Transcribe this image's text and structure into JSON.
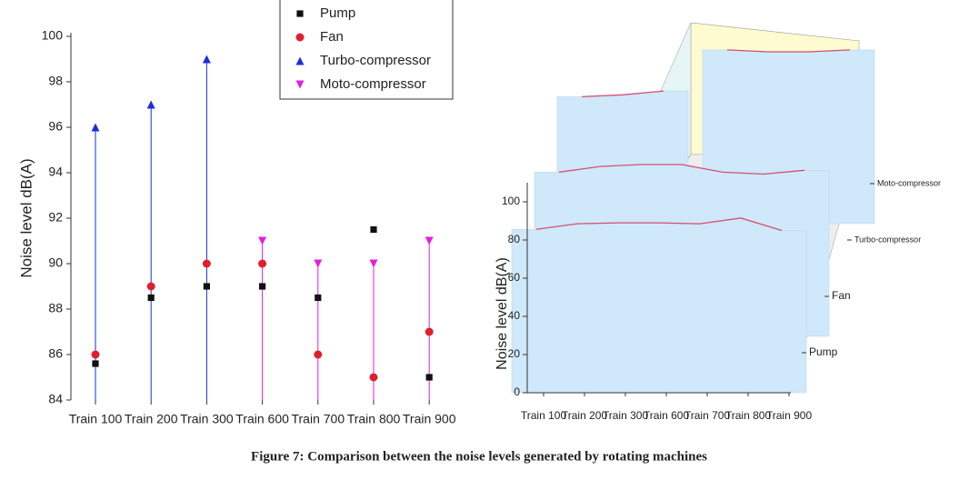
{
  "chart_data": [
    {
      "type": "scatter-drop",
      "ylabel": "Noise level dB(A)",
      "categories": [
        "Train 100",
        "Train 200",
        "Train 300",
        "Train 600",
        "Train 700",
        "Train 800",
        "Train 900"
      ],
      "series": [
        {
          "name": "Pump",
          "color": "#111111",
          "marker": "square",
          "values": [
            85.6,
            88.5,
            89,
            89,
            88.5,
            91.5,
            85
          ]
        },
        {
          "name": "Fan",
          "color": "#e0202a",
          "marker": "circle",
          "values": [
            86,
            89,
            90,
            90,
            86,
            85,
            87
          ]
        },
        {
          "name": "Turbo-compressor",
          "color": "#1a2ee0",
          "marker": "triangle-up",
          "droplines": true,
          "values": [
            96,
            97,
            99,
            null,
            null,
            null,
            null
          ]
        },
        {
          "name": "Moto-compressor",
          "color": "#e020e0",
          "marker": "triangle-down",
          "droplines": true,
          "values": [
            null,
            null,
            null,
            91,
            90,
            90,
            91
          ]
        }
      ],
      "ylim": [
        84,
        100
      ],
      "yticks": [
        84,
        86,
        88,
        90,
        92,
        94,
        96,
        98,
        100
      ]
    },
    {
      "type": "3d-wall",
      "ylabel": "Noise level dB(A)",
      "categories": [
        "Train 100",
        "Train 200",
        "Train 300",
        "Train 600",
        "Train 700",
        "Train 800",
        "Train 900"
      ],
      "series": [
        {
          "name": "Pump",
          "color": "#d4506e",
          "values": [
            85.6,
            88.5,
            89,
            89,
            88.5,
            91.5,
            85
          ]
        },
        {
          "name": "Fan",
          "color": "#d4506e",
          "values": [
            86,
            89,
            90,
            90,
            86,
            85,
            87
          ]
        },
        {
          "name": "Turbo-compressor",
          "color": "#d4506e",
          "values": [
            96,
            97,
            99,
            null,
            null,
            null,
            null
          ]
        },
        {
          "name": "Moto-compressor",
          "color": "#d4506e",
          "values": [
            null,
            null,
            null,
            91,
            90,
            90,
            91
          ]
        }
      ],
      "ylim": [
        0,
        110
      ],
      "yticks": [
        0,
        20,
        40,
        60,
        80,
        100
      ]
    }
  ],
  "caption": "Figure 7: Comparison between the noise levels generated by rotating machines"
}
